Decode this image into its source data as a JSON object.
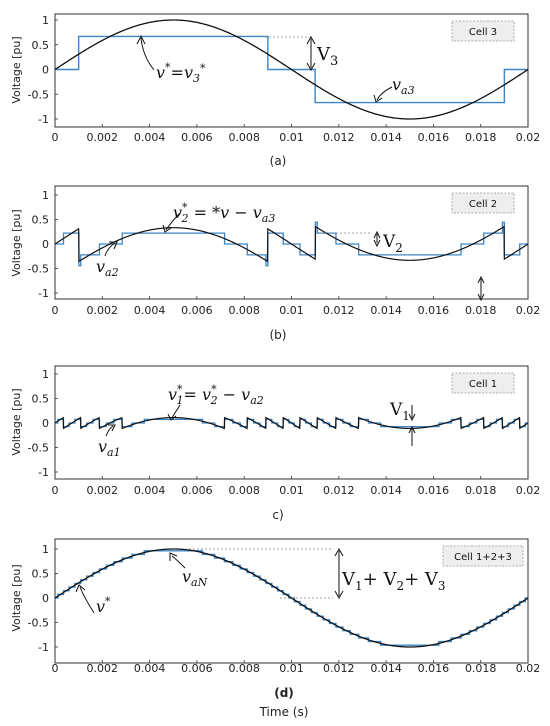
{
  "chart_data": [
    {
      "type": "line",
      "cell_label": "Cell 3",
      "sublabel": "(a)",
      "ylabel": "Voltage [pu]",
      "xlabel": "",
      "xlim": [
        0,
        0.02
      ],
      "ylim": [
        -1.2,
        1.2
      ],
      "x_ticks": [
        "0",
        "0.002",
        "0.004",
        "0.006",
        "0.008",
        "0.01",
        "0.012",
        "0.014",
        "0.016",
        "0.018",
        "0.02"
      ],
      "y_ticks": [
        "1",
        "0.5",
        "0",
        "-0.5",
        "-1"
      ],
      "series": [
        {
          "values_x": [
            0,
            0.001,
            0.001,
            0.009,
            0.009,
            0.011,
            0.011,
            0.019,
            0.019,
            0.02
          ],
          "values_y": [
            0,
            0,
            0.667,
            0.667,
            0,
            0,
            -0.667,
            -0.667,
            0,
            0
          ],
          "color": "#3a86c8"
        },
        {
          "function": "sin(2*pi*50*t)",
          "amplitude": 1.0,
          "color": "#111111"
        }
      ],
      "annotations": [
        "v*=v3*",
        "V3",
        "va3"
      ]
    },
    {
      "type": "line",
      "cell_label": "Cell 2",
      "sublabel": "(b)",
      "ylabel": "Voltage [pu]",
      "xlabel": "",
      "xlim": [
        0,
        0.02
      ],
      "ylim": [
        -1.2,
        1.2
      ],
      "x_ticks": [
        "0",
        "0.002",
        "0.004",
        "0.006",
        "0.008",
        "0.01",
        "0.012",
        "0.014",
        "0.016",
        "0.018",
        "0.02"
      ],
      "y_ticks": [
        "1",
        "0.5",
        "0",
        "-0.5",
        "-1"
      ],
      "series": [
        {
          "steps_x": [
            0,
            0.0003,
            0.001,
            0.0015,
            0.003,
            0.007,
            0.0085,
            0.009,
            0.0097,
            0.0103,
            0.011,
            0.0115,
            0.013,
            0.017,
            0.0185,
            0.019,
            0.0197,
            0.02
          ],
          "steps_y": [
            0,
            0.222,
            0,
            -0.222,
            0,
            0.222,
            0,
            0.222,
            0,
            -0.222,
            0,
            0.222,
            -0.222,
            0,
            -0.222,
            0,
            0.222,
            0
          ],
          "color": "#3a86c8"
        },
        {
          "function": "sin(2*pi*50*t) - va3(t)",
          "color": "#111111"
        }
      ],
      "annotations": [
        "v2*= *v − va3",
        "V2",
        "va2"
      ]
    },
    {
      "type": "line",
      "cell_label": "Cell 1",
      "sublabel": "c)",
      "ylabel": "Voltage [pu]",
      "xlabel": "",
      "xlim": [
        0,
        0.02
      ],
      "ylim": [
        -1.2,
        1.2
      ],
      "x_ticks": [
        "0",
        "0.002",
        "0.004",
        "0.006",
        "0.008",
        "0.01",
        "0.012",
        "0.014",
        "0.016",
        "0.018",
        "0.02"
      ],
      "y_ticks": [
        "1",
        "0.5",
        "0",
        "-0.5",
        "-1"
      ],
      "series": [
        {
          "description_values": "fine steps of amplitude 0.074 around residual",
          "color": "#3a86c8"
        },
        {
          "function": "v2* - va2",
          "color": "#111111"
        }
      ],
      "annotations": [
        "v1*= v2* − va2",
        "V1",
        "va1"
      ]
    },
    {
      "type": "line",
      "cell_label": "Cell 1+2+3",
      "sublabel": "(d)",
      "ylabel": "Voltage [pu]",
      "xlabel": "Time (s)",
      "xlim": [
        0,
        0.02
      ],
      "ylim": [
        -1.2,
        1.2
      ],
      "x_ticks": [
        "0",
        "0.002",
        "0.004",
        "0.006",
        "0.008",
        "0.01",
        "0.012",
        "0.014",
        "0.016",
        "0.018",
        "0.02"
      ],
      "y_ticks": [
        "1",
        "0.5",
        "0",
        "-0.5",
        "-1"
      ],
      "series": [
        {
          "description_values": "27-level staircase approximating sin",
          "color": "#3a86c8"
        },
        {
          "function": "sin(2*pi*50*t)",
          "amplitude": 1.0,
          "color": "#111111"
        }
      ],
      "annotations": [
        "v*",
        "vaN",
        "V1+ V2+ V3"
      ]
    }
  ]
}
